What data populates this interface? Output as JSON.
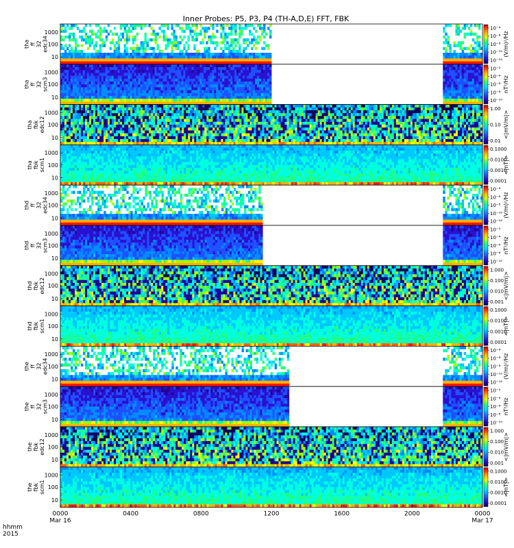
{
  "chart_data": {
    "type": "heatmap",
    "title": "Inner Probes: P5, P3, P4 (TH-A,D,E) FFT, FBK",
    "time_axis": {
      "label_line1": "hhmm",
      "label_line2": "2015",
      "ticks": [
        {
          "hour": 0,
          "label": "0000",
          "date": "Mar 16"
        },
        {
          "hour": 4,
          "label": "0400",
          "date": ""
        },
        {
          "hour": 8,
          "label": "0800",
          "date": ""
        },
        {
          "hour": 12,
          "label": "1200",
          "date": ""
        },
        {
          "hour": 16,
          "label": "1600",
          "date": ""
        },
        {
          "hour": 20,
          "label": "2000",
          "date": ""
        },
        {
          "hour": 24,
          "label": "0000",
          "date": "Mar 17"
        }
      ],
      "range_hours": [
        0,
        24
      ]
    },
    "panels": [
      {
        "id": "tha-ff32-edc34",
        "label_lines": [
          "tha",
          "ff",
          "32",
          "edc34"
        ],
        "freq_ticks": [
          "1000",
          "100",
          "10"
        ],
        "data_intervals_hours": [
          [
            0,
            12.0
          ],
          [
            21.75,
            24
          ]
        ],
        "cbar_title": "(V/m)²/Hz",
        "cbar_ticks": [
          "10⁻⁴",
          "10⁻⁶",
          "10⁻⁸",
          "10⁻¹⁰",
          "10⁻¹²"
        ],
        "style": "ffe"
      },
      {
        "id": "tha-ff32-scm3",
        "label_lines": [
          "tha",
          "ff",
          "32",
          "scm3"
        ],
        "freq_ticks": [
          "1000",
          "100",
          "10"
        ],
        "data_intervals_hours": [
          [
            0,
            12.0
          ],
          [
            21.75,
            24
          ]
        ],
        "cbar_title": "nT²/Hz",
        "cbar_ticks": [
          "10⁻²",
          "10⁻⁴",
          "10⁻⁶",
          "10⁻⁸",
          "10⁻¹⁰"
        ],
        "style": "ffb"
      },
      {
        "id": "tha-fbk-edc12",
        "label_lines": [
          "tha",
          "fbk",
          "edc12"
        ],
        "freq_ticks": [
          "1000",
          "100",
          "10"
        ],
        "data_intervals_hours": [
          [
            0,
            24
          ]
        ],
        "cbar_title": "<|mV/m|>",
        "cbar_ticks": [
          "1.00",
          "0.10",
          "0.01"
        ],
        "style": "fbe"
      },
      {
        "id": "tha-fbk-scm1",
        "label_lines": [
          "tha",
          "fbk",
          "scm1"
        ],
        "freq_ticks": [
          "1000",
          "100",
          "10"
        ],
        "data_intervals_hours": [
          [
            0,
            24
          ]
        ],
        "cbar_title": "<|nT|>",
        "cbar_ticks": [
          "0.1000",
          "0.0100",
          "0.0010",
          "0.0001"
        ],
        "style": "fbb"
      },
      {
        "id": "thd-ff32-edc34",
        "label_lines": [
          "thd",
          "ff",
          "32",
          "edc34"
        ],
        "freq_ticks": [
          "1000",
          "100",
          "10"
        ],
        "data_intervals_hours": [
          [
            0,
            11.5
          ],
          [
            21.75,
            24
          ]
        ],
        "cbar_title": "(V/m)²/Hz",
        "cbar_ticks": [
          "10⁻⁴",
          "10⁻⁶",
          "10⁻⁸",
          "10⁻¹⁰",
          "10⁻¹²"
        ],
        "style": "ffe"
      },
      {
        "id": "thd-ff32-scm3",
        "label_lines": [
          "thd",
          "ff",
          "32",
          "scm3"
        ],
        "freq_ticks": [
          "1000",
          "100",
          "10"
        ],
        "data_intervals_hours": [
          [
            0,
            11.5
          ],
          [
            21.75,
            24
          ]
        ],
        "cbar_title": "nT²/Hz",
        "cbar_ticks": [
          "10⁻²",
          "10⁻⁴",
          "10⁻⁶",
          "10⁻⁸",
          "10⁻¹⁰"
        ],
        "style": "ffb"
      },
      {
        "id": "thd-fbk-edc12",
        "label_lines": [
          "thd",
          "fbk",
          "edc12"
        ],
        "freq_ticks": [
          "1000",
          "100",
          "10"
        ],
        "data_intervals_hours": [
          [
            0,
            24
          ]
        ],
        "cbar_title": "<|mV/m|>",
        "cbar_ticks": [
          "1.000",
          "0.100",
          "0.010",
          "0.001"
        ],
        "style": "fbe"
      },
      {
        "id": "thd-fbk-scm1",
        "label_lines": [
          "thd",
          "fbk",
          "scm1"
        ],
        "freq_ticks": [
          "1000",
          "100",
          "10"
        ],
        "data_intervals_hours": [
          [
            0,
            24
          ]
        ],
        "cbar_title": "<|nT|>",
        "cbar_ticks": [
          "0.1000",
          "0.0100",
          "0.0010",
          "0.0001"
        ],
        "style": "fbb"
      },
      {
        "id": "the-ff32-edc34",
        "label_lines": [
          "the",
          "ff",
          "32",
          "edc34"
        ],
        "freq_ticks": [
          "1000",
          "100",
          "10"
        ],
        "data_intervals_hours": [
          [
            0,
            13.0
          ],
          [
            21.75,
            24
          ]
        ],
        "cbar_title": "(V/m)²/Hz",
        "cbar_ticks": [
          "10⁻⁴",
          "10⁻⁶",
          "10⁻⁸",
          "10⁻¹⁰",
          "10⁻¹²"
        ],
        "style": "ffe"
      },
      {
        "id": "the-ff32-scm3",
        "label_lines": [
          "the",
          "ff",
          "32",
          "scm3"
        ],
        "freq_ticks": [
          "1000",
          "100",
          "10"
        ],
        "data_intervals_hours": [
          [
            0,
            13.0
          ],
          [
            21.75,
            24
          ]
        ],
        "cbar_title": "nT²/Hz",
        "cbar_ticks": [
          "10⁻²",
          "10⁻⁴",
          "10⁻⁶",
          "10⁻⁸",
          "10⁻¹⁰"
        ],
        "style": "ffb"
      },
      {
        "id": "the-fbk-edc12",
        "label_lines": [
          "the",
          "fbk",
          "edc12"
        ],
        "freq_ticks": [
          "1000",
          "100",
          "10"
        ],
        "data_intervals_hours": [
          [
            0,
            24
          ]
        ],
        "cbar_title": "<|mV/m|>",
        "cbar_ticks": [
          "1.000",
          "0.100",
          "0.010",
          "0.001"
        ],
        "style": "fbe"
      },
      {
        "id": "the-fbk-scm1",
        "label_lines": [
          "the",
          "fbk",
          "scm1"
        ],
        "freq_ticks": [
          "1000",
          "100",
          "10"
        ],
        "data_intervals_hours": [
          [
            0,
            24
          ]
        ],
        "cbar_title": "<|nT|>",
        "cbar_ticks": [
          "0.1000",
          "0.0100",
          "0.0010",
          "0.0001"
        ],
        "style": "fbb"
      }
    ]
  }
}
